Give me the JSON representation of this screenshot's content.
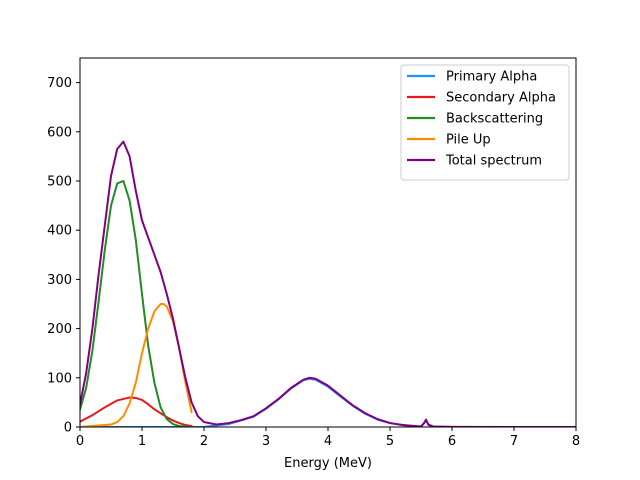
{
  "chart_data": {
    "type": "line",
    "title": "",
    "xlabel": "Energy (MeV)",
    "ylabel": "",
    "xlim": [
      0,
      8
    ],
    "ylim": [
      0,
      750
    ],
    "xticks": [
      0,
      1,
      2,
      3,
      4,
      5,
      6,
      7,
      8
    ],
    "yticks": [
      0,
      100,
      200,
      300,
      400,
      500,
      600,
      700
    ],
    "grid": false,
    "legend_position": "top-right",
    "series": [
      {
        "name": "Primary Alpha",
        "color": "#1e90ff",
        "x": [
          0,
          2.0,
          2.4,
          2.8,
          3.0,
          3.2,
          3.4,
          3.6,
          3.7,
          3.8,
          4.0,
          4.2,
          4.4,
          4.6,
          4.8,
          5.0,
          5.2,
          5.4,
          5.5,
          5.55,
          5.58,
          5.62,
          5.7,
          6.0,
          8.0
        ],
        "y": [
          0,
          0.3,
          6,
          21,
          37,
          56,
          78,
          95,
          98,
          96,
          82,
          62,
          43,
          27,
          15,
          8,
          4,
          1.5,
          1,
          8,
          14,
          4,
          0.5,
          0.1,
          0
        ]
      },
      {
        "name": "Secondary Alpha",
        "color": "#e41a1c",
        "x": [
          0,
          0.2,
          0.4,
          0.6,
          0.8,
          0.9,
          1.0,
          1.1,
          1.2,
          1.3,
          1.4,
          1.5,
          1.6,
          1.7,
          1.8
        ],
        "y": [
          11,
          24,
          40,
          54,
          60,
          59,
          55,
          46,
          36,
          28,
          20,
          13,
          8,
          4,
          2
        ]
      },
      {
        "name": "Backscattering",
        "color": "#228b22",
        "x": [
          0,
          0.1,
          0.2,
          0.3,
          0.4,
          0.5,
          0.6,
          0.7,
          0.8,
          0.9,
          1.0,
          1.1,
          1.2,
          1.3,
          1.4,
          1.5,
          1.6,
          1.7,
          1.8
        ],
        "y": [
          35,
          80,
          155,
          255,
          360,
          450,
          495,
          500,
          460,
          380,
          270,
          165,
          90,
          40,
          16,
          6,
          2,
          0.5,
          0
        ]
      },
      {
        "name": "Pile Up",
        "color": "#ff8c00",
        "x": [
          0,
          0.5,
          0.6,
          0.7,
          0.8,
          0.9,
          1.0,
          1.1,
          1.2,
          1.3,
          1.35,
          1.4,
          1.5,
          1.6,
          1.7,
          1.8
        ],
        "y": [
          0,
          5,
          10,
          22,
          48,
          90,
          150,
          200,
          235,
          250,
          250,
          245,
          215,
          160,
          90,
          30
        ]
      },
      {
        "name": "Total spectrum",
        "color": "#800080",
        "x": [
          0,
          0.1,
          0.2,
          0.3,
          0.4,
          0.5,
          0.6,
          0.7,
          0.8,
          0.9,
          1.0,
          1.1,
          1.2,
          1.3,
          1.4,
          1.5,
          1.6,
          1.7,
          1.8,
          1.9,
          2.0,
          2.2,
          2.4,
          2.6,
          2.8,
          3.0,
          3.2,
          3.4,
          3.6,
          3.7,
          3.8,
          4.0,
          4.2,
          4.4,
          4.6,
          4.8,
          5.0,
          5.2,
          5.4,
          5.5,
          5.55,
          5.58,
          5.62,
          5.7,
          6.0,
          8.0
        ],
        "y": [
          46,
          110,
          200,
          310,
          410,
          510,
          565,
          580,
          550,
          480,
          420,
          385,
          350,
          315,
          270,
          220,
          160,
          100,
          50,
          22,
          10,
          5,
          8,
          14,
          22,
          38,
          57,
          79,
          96,
          100,
          98,
          84,
          64,
          44,
          28,
          16,
          8,
          4,
          2,
          1,
          8,
          15,
          5,
          1,
          0.2,
          0
        ]
      }
    ]
  }
}
